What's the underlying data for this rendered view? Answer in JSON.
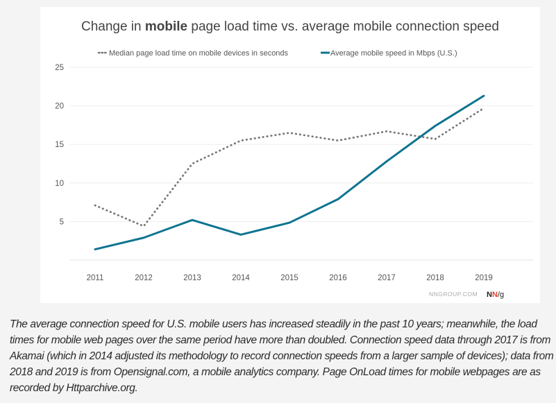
{
  "chart_data": {
    "type": "line",
    "title_parts": [
      "Change in ",
      "mobile",
      " page load time vs. average mobile connection speed"
    ],
    "xlabel": "",
    "ylabel": "",
    "categories": [
      "2011",
      "2012",
      "2013",
      "2014",
      "2015",
      "2016",
      "2017",
      "2018",
      "2019"
    ],
    "yticks": [
      5,
      10,
      15,
      20,
      25
    ],
    "ylim": [
      0,
      25
    ],
    "grid": true,
    "legend_position": "top",
    "series": [
      {
        "name": "Median page load time on mobile devices in seconds",
        "style": "dotted",
        "color": "#777777",
        "values": [
          7.1,
          4.4,
          12.5,
          15.5,
          16.5,
          15.5,
          16.7,
          15.7,
          19.7
        ]
      },
      {
        "name": "Average mobile speed in Mbps (U.S.)",
        "style": "solid",
        "color": "#0e7490",
        "values": [
          1.4,
          2.9,
          5.2,
          3.3,
          4.85,
          7.9,
          12.8,
          17.4,
          21.3
        ]
      }
    ]
  },
  "credit": {
    "site": "NNGROUP.COM",
    "logo_text": "NN/g",
    "logo_accent": "#e8432f"
  },
  "caption": "The average connection speed for U.S. mobile users has increased steadily in the past 10 years; meanwhile, the load times for mobile web pages over the same period have more than doubled. Connection speed data through 2017 is from Akamai (which in 2014 adjusted its methodology to record connection speeds from a larger sample of devices); data from 2018 and 2019 is from Opensignal.com, a mobile analytics company. Page OnLoad times for mobile webpages are as recorded by Httparchive.org."
}
